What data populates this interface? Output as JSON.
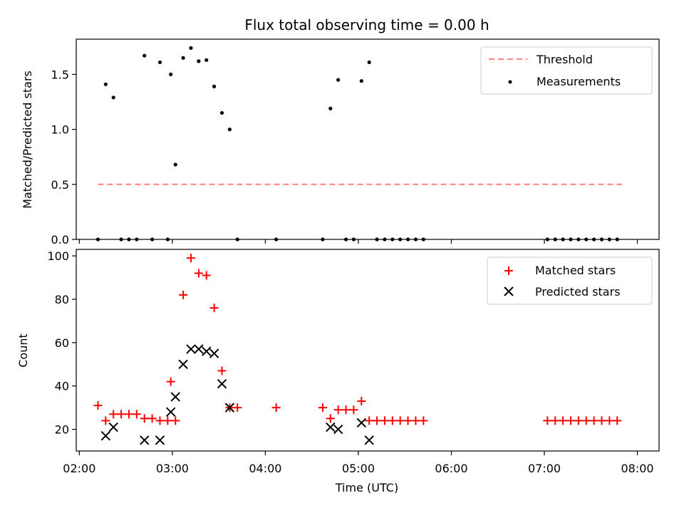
{
  "chart_data": [
    {
      "type": "scatter",
      "title": "Flux total observing time = 0.00 h",
      "xlabel": "",
      "ylabel": "Matched/Predicted stars",
      "ylim": [
        0,
        1.82
      ],
      "yticks": [
        "0.0",
        "0.5",
        "1.0",
        "1.5"
      ],
      "ytick_values": [
        0,
        0.5,
        1.0,
        1.5
      ],
      "legend_position": "top-right",
      "colors": {
        "threshold": "#ff8080",
        "measurements": "#000000"
      },
      "threshold": {
        "name": "Threshold",
        "value": 0.5,
        "x_start": "02:12",
        "x_end": "07:50"
      },
      "series": [
        {
          "name": "Measurements",
          "points": [
            [
              "02:12",
              0
            ],
            [
              "02:17",
              1.41
            ],
            [
              "02:22",
              1.29
            ],
            [
              "02:27",
              0
            ],
            [
              "02:32",
              0
            ],
            [
              "02:37",
              0
            ],
            [
              "02:42",
              1.67
            ],
            [
              "02:47",
              0
            ],
            [
              "02:52",
              1.61
            ],
            [
              "02:57",
              0
            ],
            [
              "02:59",
              1.5
            ],
            [
              "03:02",
              0.68
            ],
            [
              "03:07",
              1.65
            ],
            [
              "03:12",
              1.74
            ],
            [
              "03:17",
              1.62
            ],
            [
              "03:22",
              1.63
            ],
            [
              "03:27",
              1.39
            ],
            [
              "03:32",
              1.15
            ],
            [
              "03:37",
              1.0
            ],
            [
              "03:42",
              0
            ],
            [
              "04:07",
              0
            ],
            [
              "04:37",
              0
            ],
            [
              "04:42",
              1.19
            ],
            [
              "04:47",
              1.45
            ],
            [
              "04:52",
              0
            ],
            [
              "04:57",
              0
            ],
            [
              "05:02",
              1.44
            ],
            [
              "05:07",
              1.61
            ],
            [
              "05:12",
              0
            ],
            [
              "05:17",
              0
            ],
            [
              "05:22",
              0
            ],
            [
              "05:27",
              0
            ],
            [
              "05:32",
              0
            ],
            [
              "05:37",
              0
            ],
            [
              "05:42",
              0
            ],
            [
              "07:02",
              0
            ],
            [
              "07:07",
              0
            ],
            [
              "07:12",
              0
            ],
            [
              "07:17",
              0
            ],
            [
              "07:22",
              0
            ],
            [
              "07:27",
              0
            ],
            [
              "07:32",
              0
            ],
            [
              "07:37",
              0
            ],
            [
              "07:42",
              0
            ],
            [
              "07:47",
              0
            ]
          ]
        }
      ]
    },
    {
      "type": "scatter",
      "title": "",
      "xlabel": "Time (UTC)",
      "ylabel": "Count",
      "ylim": [
        10,
        103
      ],
      "yticks": [
        "20",
        "40",
        "60",
        "80",
        "100"
      ],
      "ytick_values": [
        20,
        40,
        60,
        80,
        100
      ],
      "xlim": [
        "01:58",
        "08:14"
      ],
      "xticks": [
        "02:00",
        "03:00",
        "04:00",
        "05:00",
        "06:00",
        "07:00",
        "08:00"
      ],
      "legend_position": "top-right",
      "colors": {
        "matched": "#ff0000",
        "predicted": "#000000"
      },
      "series": [
        {
          "name": "Matched stars",
          "points": [
            [
              "02:12",
              31
            ],
            [
              "02:17",
              24
            ],
            [
              "02:22",
              27
            ],
            [
              "02:27",
              27
            ],
            [
              "02:32",
              27
            ],
            [
              "02:37",
              27
            ],
            [
              "02:42",
              25
            ],
            [
              "02:47",
              25
            ],
            [
              "02:52",
              24
            ],
            [
              "02:57",
              24
            ],
            [
              "02:59",
              42
            ],
            [
              "03:02",
              24
            ],
            [
              "03:07",
              82
            ],
            [
              "03:12",
              99
            ],
            [
              "03:17",
              92
            ],
            [
              "03:22",
              91
            ],
            [
              "03:27",
              76
            ],
            [
              "03:32",
              47
            ],
            [
              "03:37",
              30
            ],
            [
              "03:42",
              30
            ],
            [
              "04:07",
              30
            ],
            [
              "04:37",
              30
            ],
            [
              "04:42",
              25
            ],
            [
              "04:47",
              29
            ],
            [
              "04:52",
              29
            ],
            [
              "04:57",
              29
            ],
            [
              "05:02",
              33
            ],
            [
              "05:07",
              24
            ],
            [
              "05:12",
              24
            ],
            [
              "05:17",
              24
            ],
            [
              "05:22",
              24
            ],
            [
              "05:27",
              24
            ],
            [
              "05:32",
              24
            ],
            [
              "05:37",
              24
            ],
            [
              "05:42",
              24
            ],
            [
              "07:02",
              24
            ],
            [
              "07:07",
              24
            ],
            [
              "07:12",
              24
            ],
            [
              "07:17",
              24
            ],
            [
              "07:22",
              24
            ],
            [
              "07:27",
              24
            ],
            [
              "07:32",
              24
            ],
            [
              "07:37",
              24
            ],
            [
              "07:42",
              24
            ],
            [
              "07:47",
              24
            ]
          ]
        },
        {
          "name": "Predicted stars",
          "points": [
            [
              "02:17",
              17
            ],
            [
              "02:22",
              21
            ],
            [
              "02:42",
              15
            ],
            [
              "02:52",
              15
            ],
            [
              "02:59",
              28
            ],
            [
              "03:02",
              35
            ],
            [
              "03:07",
              50
            ],
            [
              "03:12",
              57
            ],
            [
              "03:17",
              57
            ],
            [
              "03:22",
              56
            ],
            [
              "03:27",
              55
            ],
            [
              "03:32",
              41
            ],
            [
              "03:37",
              30
            ],
            [
              "04:42",
              21
            ],
            [
              "04:47",
              20
            ],
            [
              "05:02",
              23
            ],
            [
              "05:07",
              15
            ]
          ]
        }
      ]
    }
  ]
}
